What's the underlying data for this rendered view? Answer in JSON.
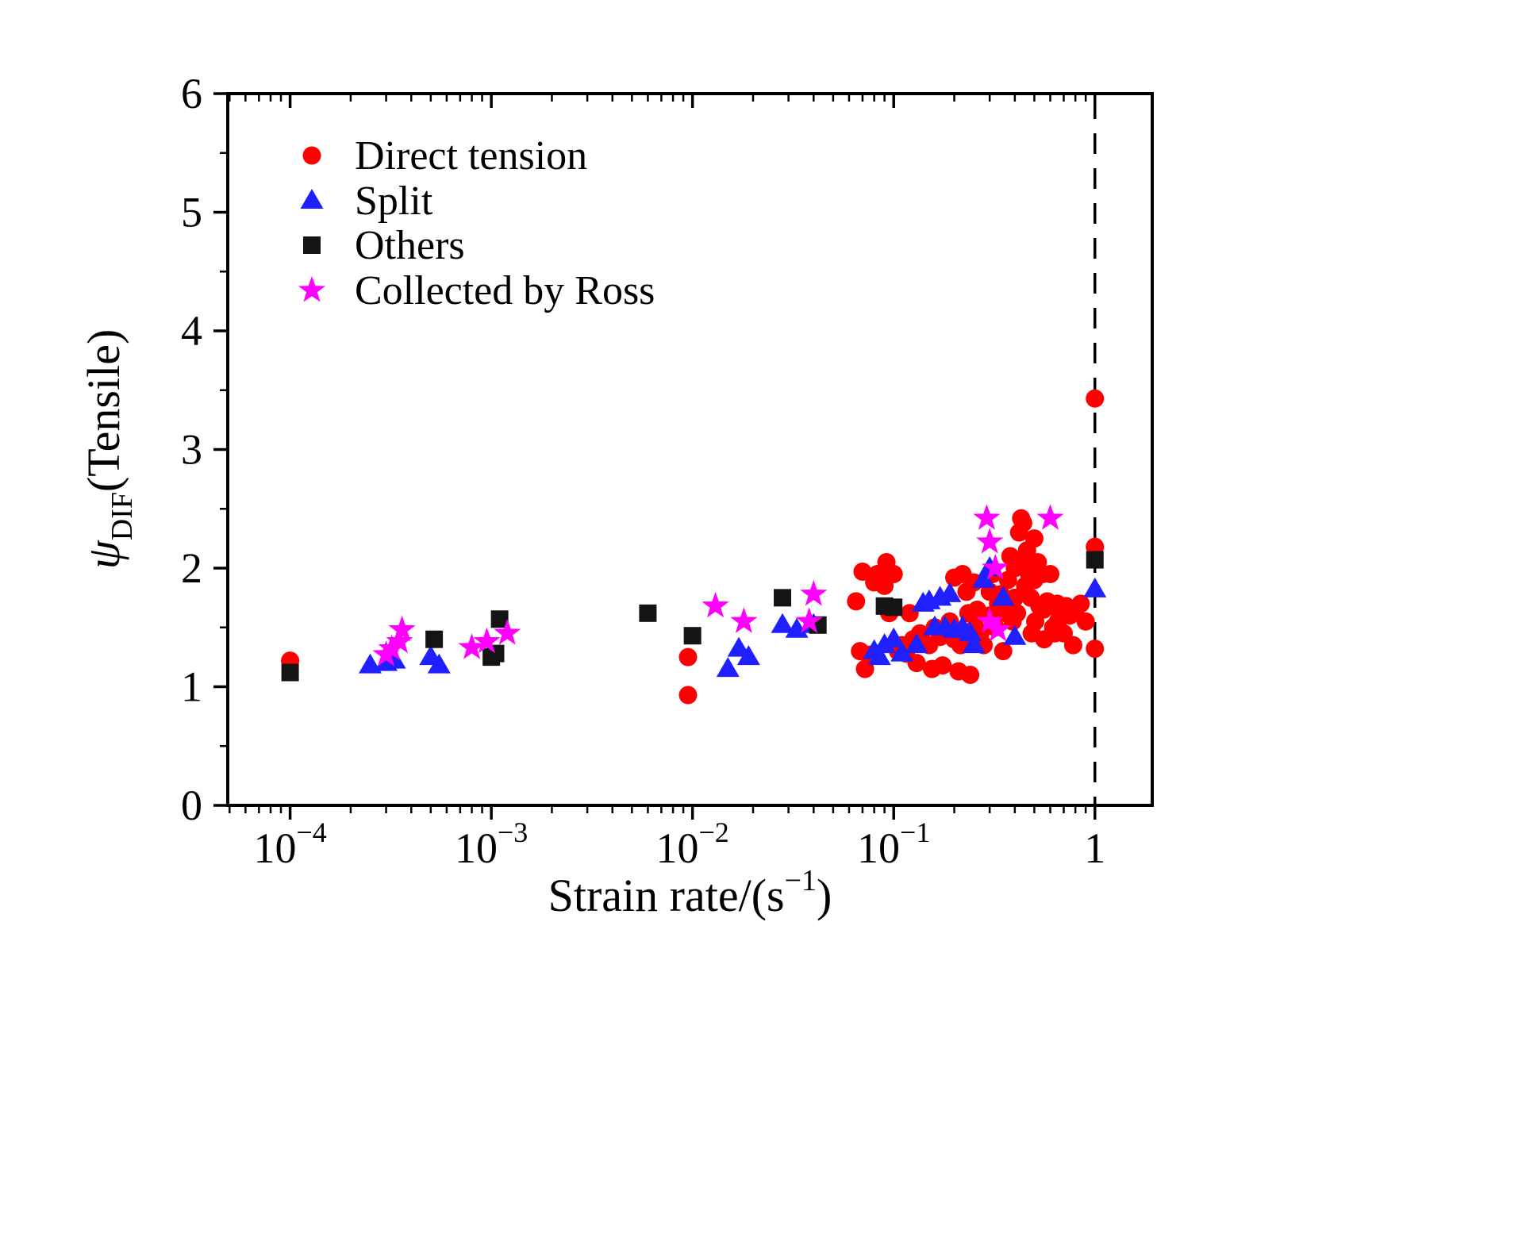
{
  "figure": {
    "background": "#ffffff",
    "axis_color": "#000000"
  },
  "chart_data": {
    "type": "scatter",
    "x_scale": "log",
    "xlabel": {
      "prefix": "Strain rate/(s",
      "sup": "−1",
      "suffix": ")"
    },
    "ylabel": {
      "psi": "ψ",
      "sub": "DIF",
      "rest": "(Tensile)"
    },
    "x_tick_exponents": [
      -4,
      -3,
      -2,
      -1,
      0
    ],
    "x_tick_labels": [
      "10⁻⁴",
      "10⁻³",
      "10⁻²",
      "10⁻¹",
      "1"
    ],
    "y_ticks": [
      0,
      1,
      2,
      3,
      4,
      5,
      6
    ],
    "ylim": [
      0,
      6
    ],
    "xlim_log": [
      -4.31,
      0.285
    ],
    "dashed_line_x": 1,
    "legend_position": "top-left",
    "series": [
      {
        "name": "Direct tension",
        "marker": "circle",
        "color": "#ff0000",
        "points": [
          [
            0.0001,
            1.22
          ],
          [
            0.0095,
            1.25
          ],
          [
            0.0095,
            0.93
          ],
          [
            0.065,
            1.72
          ],
          [
            0.068,
            1.3
          ],
          [
            0.07,
            1.97
          ],
          [
            0.072,
            1.15
          ],
          [
            0.075,
            1.27
          ],
          [
            0.08,
            1.88
          ],
          [
            0.083,
            1.95
          ],
          [
            0.09,
            1.85
          ],
          [
            0.092,
            2.05
          ],
          [
            0.095,
            1.62
          ],
          [
            0.1,
            1.95
          ],
          [
            0.105,
            1.3
          ],
          [
            0.11,
            1.35
          ],
          [
            0.115,
            1.28
          ],
          [
            0.12,
            1.62
          ],
          [
            0.125,
            1.4
          ],
          [
            0.13,
            1.2
          ],
          [
            0.135,
            1.45
          ],
          [
            0.14,
            1.38
          ],
          [
            0.15,
            1.35
          ],
          [
            0.155,
            1.15
          ],
          [
            0.16,
            1.5
          ],
          [
            0.17,
            1.42
          ],
          [
            0.175,
            1.18
          ],
          [
            0.18,
            1.45
          ],
          [
            0.19,
            1.55
          ],
          [
            0.2,
            1.92
          ],
          [
            0.2,
            1.4
          ],
          [
            0.21,
            1.13
          ],
          [
            0.215,
            1.35
          ],
          [
            0.22,
            1.95
          ],
          [
            0.225,
            1.45
          ],
          [
            0.23,
            1.8
          ],
          [
            0.235,
            1.62
          ],
          [
            0.24,
            1.1
          ],
          [
            0.25,
            1.88
          ],
          [
            0.255,
            1.5
          ],
          [
            0.26,
            1.65
          ],
          [
            0.27,
            1.45
          ],
          [
            0.28,
            1.35
          ],
          [
            0.3,
            1.8
          ],
          [
            0.3,
            1.6
          ],
          [
            0.31,
            1.95
          ],
          [
            0.32,
            1.5
          ],
          [
            0.33,
            1.7
          ],
          [
            0.34,
            1.78
          ],
          [
            0.35,
            1.3
          ],
          [
            0.36,
            1.62
          ],
          [
            0.37,
            1.9
          ],
          [
            0.38,
            2.1
          ],
          [
            0.39,
            1.55
          ],
          [
            0.4,
            2.0
          ],
          [
            0.4,
            1.75
          ],
          [
            0.41,
            1.62
          ],
          [
            0.42,
            2.3
          ],
          [
            0.43,
            2.42
          ],
          [
            0.44,
            2.38
          ],
          [
            0.45,
            2.05
          ],
          [
            0.45,
            1.85
          ],
          [
            0.46,
            2.15
          ],
          [
            0.47,
            1.95
          ],
          [
            0.48,
            1.75
          ],
          [
            0.485,
            1.45
          ],
          [
            0.5,
            2.25
          ],
          [
            0.5,
            1.9
          ],
          [
            0.505,
            1.55
          ],
          [
            0.52,
            2.05
          ],
          [
            0.53,
            1.68
          ],
          [
            0.55,
            1.95
          ],
          [
            0.555,
            1.65
          ],
          [
            0.56,
            1.4
          ],
          [
            0.58,
            1.72
          ],
          [
            0.6,
            1.95
          ],
          [
            0.605,
            1.68
          ],
          [
            0.62,
            1.5
          ],
          [
            0.63,
            1.45
          ],
          [
            0.65,
            1.7
          ],
          [
            0.655,
            1.55
          ],
          [
            0.68,
            1.62
          ],
          [
            0.7,
            1.45
          ],
          [
            0.72,
            1.68
          ],
          [
            0.75,
            1.6
          ],
          [
            0.78,
            1.35
          ],
          [
            0.8,
            1.65
          ],
          [
            0.85,
            1.7
          ],
          [
            0.9,
            1.55
          ],
          [
            1.0,
            3.43
          ],
          [
            1.0,
            2.18
          ],
          [
            1.0,
            1.32
          ]
        ]
      },
      {
        "name": "Split",
        "marker": "triangle",
        "color": "#2020ff",
        "points": [
          [
            0.00025,
            1.18
          ],
          [
            0.0003,
            1.2
          ],
          [
            0.00033,
            1.22
          ],
          [
            0.0005,
            1.25
          ],
          [
            0.00055,
            1.18
          ],
          [
            0.015,
            1.15
          ],
          [
            0.017,
            1.32
          ],
          [
            0.019,
            1.25
          ],
          [
            0.028,
            1.52
          ],
          [
            0.033,
            1.48
          ],
          [
            0.04,
            1.52
          ],
          [
            0.08,
            1.3
          ],
          [
            0.085,
            1.25
          ],
          [
            0.09,
            1.35
          ],
          [
            0.1,
            1.4
          ],
          [
            0.11,
            1.28
          ],
          [
            0.13,
            1.35
          ],
          [
            0.14,
            1.7
          ],
          [
            0.15,
            1.72
          ],
          [
            0.16,
            1.5
          ],
          [
            0.17,
            1.75
          ],
          [
            0.18,
            1.5
          ],
          [
            0.19,
            1.78
          ],
          [
            0.2,
            1.48
          ],
          [
            0.22,
            1.5
          ],
          [
            0.24,
            1.45
          ],
          [
            0.25,
            1.35
          ],
          [
            0.28,
            1.9
          ],
          [
            0.3,
            2.0
          ],
          [
            0.35,
            1.75
          ],
          [
            0.4,
            1.42
          ],
          [
            1.0,
            1.82
          ]
        ]
      },
      {
        "name": "Others",
        "marker": "square",
        "color": "#141414",
        "points": [
          [
            0.0001,
            1.12
          ],
          [
            0.00052,
            1.4
          ],
          [
            0.001,
            1.25
          ],
          [
            0.00105,
            1.28
          ],
          [
            0.0011,
            1.57
          ],
          [
            0.006,
            1.62
          ],
          [
            0.01,
            1.43
          ],
          [
            0.028,
            1.75
          ],
          [
            0.042,
            1.52
          ],
          [
            0.09,
            1.68
          ],
          [
            0.1,
            1.67
          ],
          [
            1.0,
            2.07
          ]
        ]
      },
      {
        "name": "Collected by Ross",
        "marker": "star",
        "color": "#ff00ff",
        "points": [
          [
            0.0003,
            1.27
          ],
          [
            0.00032,
            1.32
          ],
          [
            0.00035,
            1.38
          ],
          [
            0.00036,
            1.48
          ],
          [
            0.0008,
            1.33
          ],
          [
            0.00095,
            1.38
          ],
          [
            0.0012,
            1.45
          ],
          [
            0.013,
            1.68
          ],
          [
            0.018,
            1.55
          ],
          [
            0.038,
            1.55
          ],
          [
            0.04,
            1.78
          ],
          [
            0.29,
            2.42
          ],
          [
            0.3,
            2.22
          ],
          [
            0.32,
            2.0
          ],
          [
            0.3,
            1.55
          ],
          [
            0.33,
            1.48
          ],
          [
            0.6,
            2.42
          ]
        ]
      }
    ]
  }
}
